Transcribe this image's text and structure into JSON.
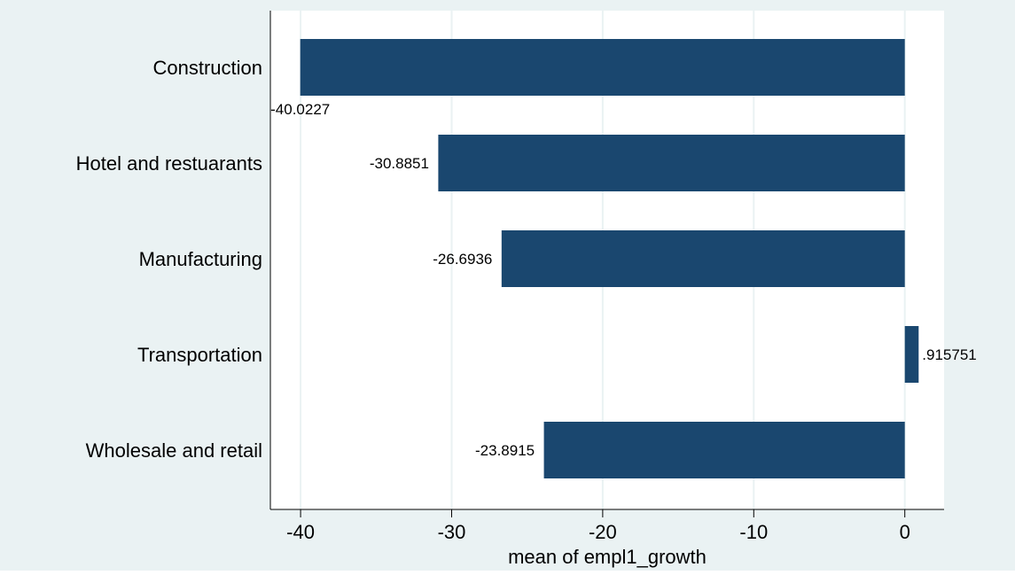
{
  "colors": {
    "outer_background": "#eaf2f3",
    "plot_background": "#ffffff",
    "bar": "#1a476f",
    "gridline": "#eaf2f3",
    "axis": "#000000",
    "text": "#000000"
  },
  "chart_data": {
    "type": "bar",
    "orientation": "horizontal",
    "categories": [
      "Construction",
      "Hotel and restuarants",
      "Manufacturing",
      "Transportation",
      "Wholesale and retail"
    ],
    "values": [
      -40.0227,
      -30.8851,
      -26.6936,
      0.915751,
      -23.8915
    ],
    "value_labels": [
      "-40.0227",
      "-30.8851",
      "-26.6936",
      ".915751",
      "-23.8915"
    ],
    "title": "",
    "xlabel": "mean of empl1_growth",
    "ylabel": "",
    "xlim": [
      -42,
      2.6
    ],
    "xticks": [
      -40,
      -30,
      -20,
      -10,
      0
    ],
    "xtick_labels": [
      "-40",
      "-30",
      "-20",
      "-10",
      "0"
    ],
    "grid": true
  }
}
